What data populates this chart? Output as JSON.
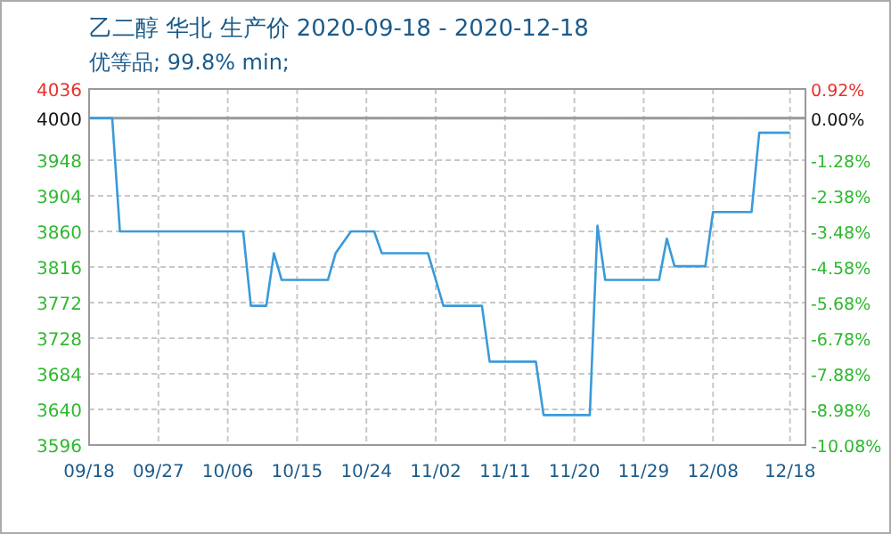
{
  "chart_data": {
    "type": "line",
    "title": "乙二醇 华北 生产价 2020-09-18 - 2020-12-18",
    "subtitle": "优等品; 99.8% min;",
    "x": [
      "2020-09-18",
      "2020-09-21",
      "2020-09-22",
      "2020-10-08",
      "2020-10-09",
      "2020-10-11",
      "2020-10-12",
      "2020-10-13",
      "2020-10-19",
      "2020-10-20",
      "2020-10-22",
      "2020-10-25",
      "2020-10-26",
      "2020-11-01",
      "2020-11-03",
      "2020-11-08",
      "2020-11-09",
      "2020-11-15",
      "2020-11-16",
      "2020-11-22",
      "2020-11-23",
      "2020-11-24",
      "2020-12-01",
      "2020-12-02",
      "2020-12-03",
      "2020-12-07",
      "2020-12-08",
      "2020-12-13",
      "2020-12-14",
      "2020-12-18"
    ],
    "series": [
      {
        "color": "#3a9ad9",
        "values": [
          4000,
          4000,
          3860,
          3860,
          3768,
          3768,
          3833,
          3800,
          3800,
          3833,
          3860,
          3860,
          3833,
          3833,
          3768,
          3768,
          3699,
          3699,
          3633,
          3633,
          3867,
          3800,
          3800,
          3851,
          3817,
          3817,
          3884,
          3884,
          3982,
          3982
        ]
      }
    ],
    "xlim": [
      "2020-09-18",
      "2020-12-20"
    ],
    "xticks": [
      {
        "value": "2020-09-18",
        "label": "09/18"
      },
      {
        "value": "2020-09-27",
        "label": "09/27"
      },
      {
        "value": "2020-10-06",
        "label": "10/06"
      },
      {
        "value": "2020-10-15",
        "label": "10/15"
      },
      {
        "value": "2020-10-24",
        "label": "10/24"
      },
      {
        "value": "2020-11-02",
        "label": "11/02"
      },
      {
        "value": "2020-11-11",
        "label": "11/11"
      },
      {
        "value": "2020-11-20",
        "label": "11/20"
      },
      {
        "value": "2020-11-29",
        "label": "11/29"
      },
      {
        "value": "2020-12-08",
        "label": "12/08"
      },
      {
        "value": "2020-12-18",
        "label": "12/18"
      }
    ],
    "ylim": [
      3596,
      4036
    ],
    "yticks": [
      3596,
      3640,
      3684,
      3728,
      3772,
      3816,
      3860,
      3904,
      3948,
      4000,
      4036
    ],
    "y2lim": [
      -10.08,
      0.92
    ],
    "y2ticks": [
      {
        "value": -10.08,
        "label": "-10.08%"
      },
      {
        "value": -8.98,
        "label": "-8.98%"
      },
      {
        "value": -7.88,
        "label": "-7.88%"
      },
      {
        "value": -6.78,
        "label": "-6.78%"
      },
      {
        "value": -5.68,
        "label": "-5.68%"
      },
      {
        "value": -4.58,
        "label": "-4.58%"
      },
      {
        "value": -3.48,
        "label": "-3.48%"
      },
      {
        "value": -2.38,
        "label": "-2.38%"
      },
      {
        "value": -1.28,
        "label": "-1.28%"
      },
      {
        "value": 0,
        "label": "0.00%"
      },
      {
        "value": 0.92,
        "label": "0.92%"
      }
    ],
    "ref_lines": [
      {
        "axis": "y",
        "value": 4000,
        "color": "#999999"
      }
    ],
    "grid": true
  }
}
